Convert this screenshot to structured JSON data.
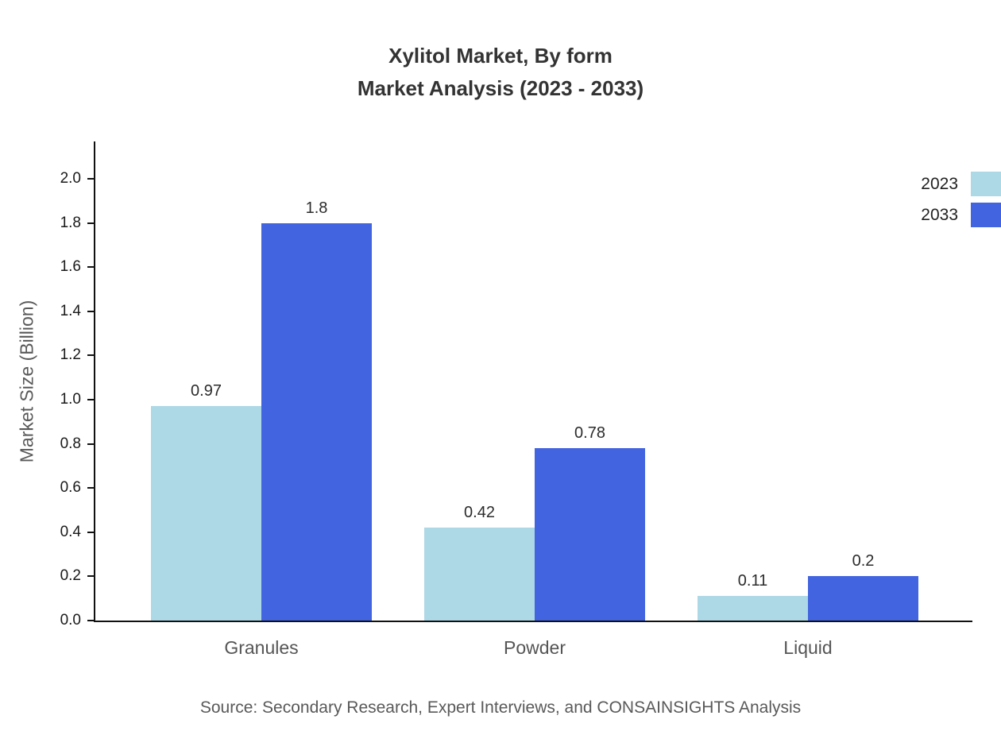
{
  "title": {
    "line1": "Xylitol Market, By form",
    "line2": "Market Analysis (2023 - 2033)"
  },
  "source": "Source: Secondary Research, Expert Interviews, and CONSAINSIGHTS Analysis",
  "chart_data": {
    "type": "bar",
    "title": "Xylitol Market, By form Market Analysis (2023 - 2033)",
    "categories": [
      "Granules",
      "Powder",
      "Liquid"
    ],
    "series": [
      {
        "name": "2023",
        "color": "#add8e6",
        "values": [
          0.97,
          0.42,
          0.11
        ],
        "labels": [
          "0.97",
          "0.42",
          "0.11"
        ]
      },
      {
        "name": "2033",
        "color": "#4264e0",
        "values": [
          1.8,
          0.78,
          0.2
        ],
        "labels": [
          "1.8",
          "0.78",
          "0.2"
        ]
      }
    ],
    "xlabel": "",
    "ylabel": "Market Size (Billion)",
    "ylim": [
      0,
      2.0
    ],
    "ytick_step": 0.2,
    "grid": false,
    "legend_position": "top-right"
  }
}
